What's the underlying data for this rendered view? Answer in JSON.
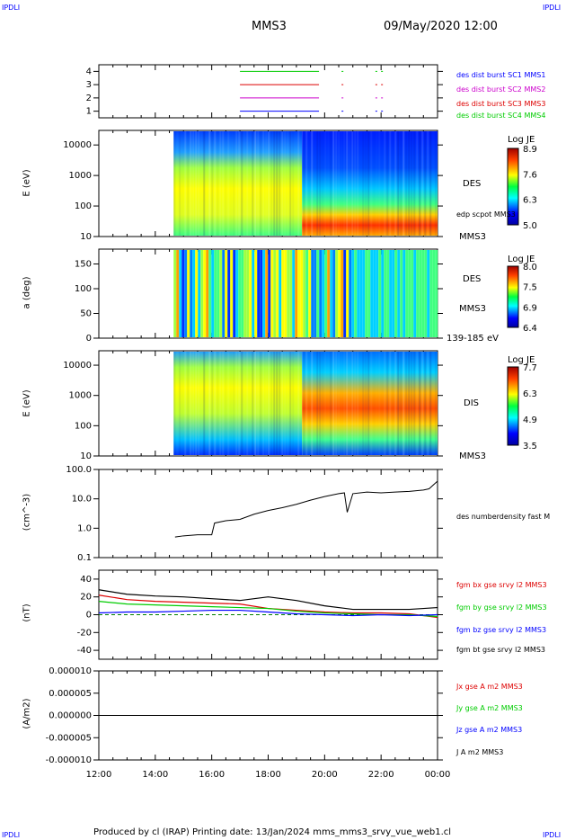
{
  "corner_label": "IPDLI",
  "header": {
    "spacecraft": "MMS3",
    "datetime": "09/May/2020 12:00"
  },
  "footer": "Produced by cl (IRAP)   Printing date: 13/Jan/2024   mms_mms3_srvy_vue_web1.cl",
  "colors": {
    "blue": "#0000ff",
    "magenta": "#cc00cc",
    "red": "#dd0000",
    "green": "#00cc00",
    "black": "#000000"
  },
  "chart_data": [
    {
      "type": "line",
      "id": "burst",
      "title": "",
      "xlabel": "",
      "ylabel": "",
      "ylim": [
        0.5,
        4.5
      ],
      "y_ticks": [
        "1",
        "2",
        "3",
        "4"
      ],
      "series": [
        {
          "name": "des dist burst SC1 MMS1",
          "y": 4,
          "segments": [
            [
              17.0,
              19.8
            ],
            [
              20.6,
              20.65
            ],
            [
              21.8,
              21.85
            ],
            [
              22.0,
              22.05
            ]
          ]
        },
        {
          "name": "des dist burst SC2 MMS2",
          "y": 3,
          "segments": [
            [
              17.0,
              19.8
            ],
            [
              20.6,
              20.65
            ],
            [
              21.8,
              21.85
            ],
            [
              22.0,
              22.05
            ]
          ]
        },
        {
          "name": "des dist burst SC3 MMS3",
          "y": 2,
          "segments": [
            [
              17.0,
              19.8
            ],
            [
              20.6,
              20.65
            ],
            [
              21.8,
              21.85
            ],
            [
              22.0,
              22.05
            ]
          ]
        },
        {
          "name": "des dist burst SC4 MMS4",
          "y": 1,
          "segments": [
            [
              17.0,
              19.8
            ],
            [
              20.6,
              20.65
            ],
            [
              21.8,
              21.85
            ],
            [
              22.0,
              22.05
            ]
          ]
        }
      ]
    },
    {
      "type": "heatmap",
      "id": "des_energy",
      "ylabel": "E (eV)",
      "yscale": "log",
      "ylim": [
        10,
        30000
      ],
      "y_ticks": [
        "10000",
        "1000",
        "100",
        "10"
      ],
      "data_start_hour": 14.65,
      "right_label": "DES",
      "right_sub": "MMS3",
      "overlay_label": "edp scpot MMS3",
      "colorbar": {
        "label": "Log JE",
        "ticks": [
          "8.9",
          "7.6",
          "6.3",
          "5.0"
        ]
      }
    },
    {
      "type": "heatmap",
      "id": "des_pitch",
      "ylabel": "a (deg)",
      "ylim": [
        0,
        180
      ],
      "y_ticks": [
        "150",
        "100",
        "50",
        "0"
      ],
      "right_label": "DES",
      "right_sub": "MMS3",
      "bottom_label": "139-185 eV",
      "colorbar": {
        "label": "Log JE",
        "ticks": [
          "8.0",
          "7.5",
          "6.9",
          "6.4"
        ]
      }
    },
    {
      "type": "heatmap",
      "id": "dis_energy",
      "ylabel": "E (eV)",
      "yscale": "log",
      "ylim": [
        10,
        30000
      ],
      "y_ticks": [
        "10000",
        "1000",
        "100",
        "10"
      ],
      "right_label": "DIS",
      "right_sub": "MMS3",
      "colorbar": {
        "label": "Log JE",
        "ticks": [
          "7.7",
          "6.3",
          "4.9",
          "3.5"
        ]
      }
    },
    {
      "type": "line",
      "id": "density",
      "ylabel": "(cm^-3)",
      "yscale": "log",
      "ylim": [
        0.1,
        100
      ],
      "y_ticks": [
        "100.0",
        "10.0",
        "1.0",
        "0.1"
      ],
      "series": [
        {
          "name": "des numberdensity fast M",
          "color": "#000000",
          "x": [
            14.7,
            15.0,
            15.5,
            16.0,
            16.1,
            16.5,
            17.0,
            17.5,
            18.0,
            18.5,
            19.0,
            19.5,
            20.0,
            20.5,
            20.7,
            20.8,
            21.0,
            21.5,
            22.0,
            22.5,
            23.0,
            23.5,
            23.7,
            24.0
          ],
          "y": [
            0.5,
            0.55,
            0.6,
            0.6,
            1.5,
            1.8,
            2.0,
            3.0,
            4.0,
            5.0,
            6.5,
            9,
            12,
            15,
            16,
            3.5,
            15,
            17,
            16,
            17,
            18,
            20,
            22,
            40
          ]
        }
      ]
    },
    {
      "type": "line",
      "id": "fgm",
      "ylabel": "(nT)",
      "ylim": [
        -50,
        50
      ],
      "y_ticks": [
        "40",
        "20",
        "0",
        "-20",
        "-40"
      ],
      "series": [
        {
          "name": "fgm bx gse srvy l2 MMS3",
          "color": "#dd0000",
          "x": [
            12,
            13,
            14,
            15,
            16,
            17,
            18,
            19,
            20,
            21,
            22,
            23,
            24
          ],
          "y": [
            22,
            17,
            15,
            14,
            13,
            12,
            7,
            5,
            3,
            2,
            2,
            1,
            -3
          ]
        },
        {
          "name": "fgm by gse srvy l2 MMS3",
          "color": "#00cc00",
          "x": [
            12,
            13,
            14,
            15,
            16,
            17,
            18,
            19,
            20,
            21,
            22,
            23,
            24
          ],
          "y": [
            15,
            12,
            11,
            10,
            9,
            8,
            7,
            4,
            2,
            1,
            0,
            0,
            -2
          ]
        },
        {
          "name": "fgm bz gse srvy l2 MMS3",
          "color": "#0000ff",
          "x": [
            12,
            13,
            14,
            15,
            16,
            17,
            18,
            19,
            20,
            21,
            22,
            23,
            24
          ],
          "y": [
            2,
            3,
            3,
            4,
            5,
            5,
            3,
            1,
            0,
            -1,
            0,
            -1,
            0
          ]
        },
        {
          "name": "fgm bt gse srvy l2 MMS3",
          "color": "#000000",
          "x": [
            12,
            13,
            14,
            15,
            16,
            17,
            18,
            19,
            20,
            21,
            22,
            23,
            24
          ],
          "y": [
            28,
            23,
            21,
            20,
            18,
            16,
            20,
            16,
            10,
            6,
            6,
            6,
            8
          ]
        }
      ]
    },
    {
      "type": "line",
      "id": "current",
      "ylabel": "(A/m2)",
      "ylim": [
        -1e-05,
        1e-05
      ],
      "y_ticks": [
        "0.000010",
        "0.000005",
        "0.000000",
        "-0.000005",
        "-0.000010"
      ],
      "series": [
        {
          "name": "Jx gse A m2 MMS3",
          "color": "#dd0000",
          "x": [
            12,
            24
          ],
          "y": [
            0,
            0
          ]
        },
        {
          "name": "Jy gse A m2 MMS3",
          "color": "#00cc00",
          "x": [
            12,
            24
          ],
          "y": [
            0,
            0
          ]
        },
        {
          "name": "Jz gse A m2 MMS3",
          "color": "#0000ff",
          "x": [
            12,
            24
          ],
          "y": [
            0,
            0
          ]
        },
        {
          "name": "J A m2 MMS3",
          "color": "#000000",
          "x": [
            12,
            24
          ],
          "y": [
            0,
            0
          ]
        }
      ],
      "x_ticks": [
        "12:00",
        "14:00",
        "16:00",
        "18:00",
        "20:00",
        "22:00",
        "00:00"
      ],
      "xlim_hours": [
        12,
        24
      ]
    }
  ]
}
